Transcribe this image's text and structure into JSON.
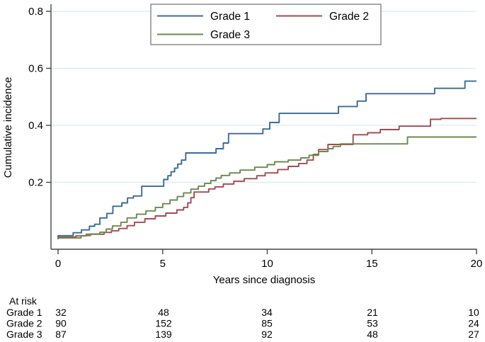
{
  "figure": {
    "xlabel": "Years since diagnosis",
    "ylabel": "Cumulative incidence",
    "at_risk": {
      "title": "At risk",
      "rows": [
        {
          "label": "Grade 1",
          "values": [
            "32",
            "48",
            "34",
            "21",
            "10"
          ]
        },
        {
          "label": "Grade 2",
          "values": [
            "90",
            "152",
            "85",
            "53",
            "24"
          ]
        },
        {
          "label": "Grade 3",
          "values": [
            "87",
            "139",
            "92",
            "48",
            "27"
          ]
        }
      ]
    }
  },
  "chart_data": {
    "type": "line",
    "subtype": "step",
    "title": "",
    "xlabel": "Years since diagnosis",
    "ylabel": "Cumulative incidence",
    "xlim": [
      0,
      20
    ],
    "ylim": [
      0,
      0.8
    ],
    "xticks": [
      0,
      5,
      10,
      15,
      20
    ],
    "yticks": [
      0.2,
      0.4,
      0.6,
      0.8
    ],
    "grid": "horizontal",
    "legend_position": "top-center",
    "colors": {
      "grid": "#dcecf4",
      "axis": "#454545",
      "text": "#000000",
      "legend_border": "#848484",
      "background": "#ffffff"
    },
    "series": [
      {
        "name": "Grade 1",
        "color": "#3a6b97",
        "points": [
          [
            0,
            0.013
          ],
          [
            0.72,
            0.023
          ],
          [
            1.12,
            0.033
          ],
          [
            1.5,
            0.046
          ],
          [
            1.75,
            0.053
          ],
          [
            2.0,
            0.075
          ],
          [
            2.33,
            0.091
          ],
          [
            2.62,
            0.116
          ],
          [
            3.05,
            0.128
          ],
          [
            3.32,
            0.145
          ],
          [
            3.6,
            0.152
          ],
          [
            4.0,
            0.186
          ],
          [
            5.05,
            0.21
          ],
          [
            5.25,
            0.223
          ],
          [
            5.4,
            0.237
          ],
          [
            5.57,
            0.25
          ],
          [
            5.72,
            0.264
          ],
          [
            5.9,
            0.278
          ],
          [
            6.1,
            0.303
          ],
          [
            7.55,
            0.318
          ],
          [
            7.9,
            0.338
          ],
          [
            8.15,
            0.371
          ],
          [
            9.79,
            0.387
          ],
          [
            10.12,
            0.41
          ],
          [
            10.57,
            0.442
          ],
          [
            13.4,
            0.466
          ],
          [
            14.3,
            0.485
          ],
          [
            14.72,
            0.511
          ],
          [
            18.0,
            0.53
          ],
          [
            19.45,
            0.555
          ],
          [
            20,
            0.555
          ]
        ]
      },
      {
        "name": "Grade 2",
        "color": "#a64a52",
        "points": [
          [
            0,
            0.008
          ],
          [
            0.85,
            0.012
          ],
          [
            1.35,
            0.018
          ],
          [
            2.2,
            0.024
          ],
          [
            2.55,
            0.03
          ],
          [
            2.9,
            0.038
          ],
          [
            3.3,
            0.048
          ],
          [
            3.65,
            0.06
          ],
          [
            4.15,
            0.072
          ],
          [
            4.65,
            0.082
          ],
          [
            5.15,
            0.092
          ],
          [
            5.68,
            0.103
          ],
          [
            6.0,
            0.112
          ],
          [
            6.2,
            0.128
          ],
          [
            6.35,
            0.146
          ],
          [
            6.5,
            0.166
          ],
          [
            7.2,
            0.177
          ],
          [
            7.5,
            0.184
          ],
          [
            7.9,
            0.194
          ],
          [
            8.4,
            0.204
          ],
          [
            8.9,
            0.213
          ],
          [
            9.5,
            0.223
          ],
          [
            9.9,
            0.233
          ],
          [
            10.5,
            0.245
          ],
          [
            11.0,
            0.256
          ],
          [
            11.5,
            0.266
          ],
          [
            11.9,
            0.278
          ],
          [
            12.2,
            0.298
          ],
          [
            12.45,
            0.315
          ],
          [
            12.9,
            0.333
          ],
          [
            14.1,
            0.367
          ],
          [
            14.8,
            0.374
          ],
          [
            15.4,
            0.385
          ],
          [
            16.3,
            0.397
          ],
          [
            17.8,
            0.421
          ],
          [
            18.3,
            0.424
          ],
          [
            20,
            0.424
          ]
        ]
      },
      {
        "name": "Grade 3",
        "color": "#688b4e",
        "points": [
          [
            0,
            0.005
          ],
          [
            1.1,
            0.013
          ],
          [
            1.55,
            0.019
          ],
          [
            2.0,
            0.025
          ],
          [
            2.3,
            0.036
          ],
          [
            2.6,
            0.047
          ],
          [
            3.0,
            0.06
          ],
          [
            3.3,
            0.075
          ],
          [
            3.75,
            0.088
          ],
          [
            4.2,
            0.1
          ],
          [
            4.65,
            0.112
          ],
          [
            5.0,
            0.125
          ],
          [
            5.35,
            0.138
          ],
          [
            5.7,
            0.15
          ],
          [
            6.0,
            0.163
          ],
          [
            6.35,
            0.176
          ],
          [
            6.7,
            0.186
          ],
          [
            7.0,
            0.196
          ],
          [
            7.3,
            0.206
          ],
          [
            7.55,
            0.215
          ],
          [
            7.8,
            0.224
          ],
          [
            8.2,
            0.233
          ],
          [
            8.7,
            0.243
          ],
          [
            9.4,
            0.253
          ],
          [
            10.0,
            0.262
          ],
          [
            10.35,
            0.272
          ],
          [
            11.0,
            0.278
          ],
          [
            11.6,
            0.286
          ],
          [
            12.0,
            0.295
          ],
          [
            12.45,
            0.308
          ],
          [
            12.9,
            0.318
          ],
          [
            13.15,
            0.326
          ],
          [
            13.5,
            0.335
          ],
          [
            16.7,
            0.359
          ],
          [
            20,
            0.359
          ]
        ]
      }
    ]
  }
}
